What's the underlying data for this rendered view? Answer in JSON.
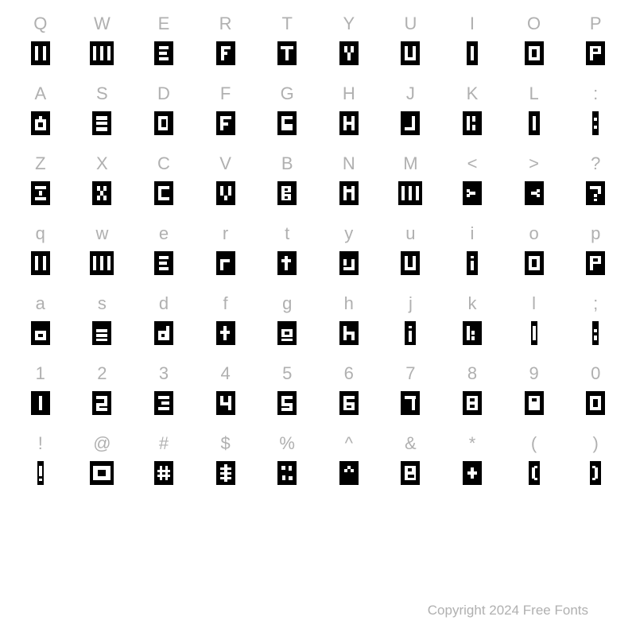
{
  "grid": {
    "columns": 10,
    "rows": 8,
    "label_color": "#b0b0b0",
    "label_fontsize": 22,
    "glyph_bg": "#000000",
    "glyph_cutout": "#ffffff",
    "labels": [
      [
        "Q",
        "W",
        "E",
        "R",
        "T",
        "Y",
        "U",
        "I",
        "O",
        "P"
      ],
      [
        "A",
        "S",
        "D",
        "F",
        "G",
        "H",
        "J",
        "K",
        "L",
        ":"
      ],
      [
        "Z",
        "X",
        "C",
        "V",
        "B",
        "N",
        "M",
        "<",
        ">",
        "?"
      ],
      [
        "q",
        "w",
        "e",
        "r",
        "t",
        "y",
        "u",
        "i",
        "o",
        "p"
      ],
      [
        "a",
        "s",
        "d",
        "f",
        "g",
        "h",
        "j",
        "k",
        "l",
        ";"
      ],
      [
        "1",
        "2",
        "3",
        "4",
        "5",
        "6",
        "7",
        "8",
        "9",
        "0"
      ],
      [
        "!",
        "@",
        "#",
        "$",
        "%",
        "^",
        "&",
        "*",
        "(",
        ")"
      ],
      [
        "",
        "",
        "",
        "",
        "",
        "",
        "",
        "",
        "",
        ""
      ]
    ],
    "glyph_variants": [
      [
        "two-bars",
        "three-bars",
        "box-e",
        "box-r",
        "t-shape",
        "y-shape",
        "u-shape",
        "i-bar",
        "o-ring",
        "p-shape"
      ],
      [
        "a-shape",
        "s-shape",
        "d-shape",
        "f-shape",
        "g-shape",
        "h-shape",
        "j-shape",
        "k-shape",
        "l-bar",
        "colon"
      ],
      [
        "z-shape",
        "x-shape",
        "c-shape",
        "v-shape",
        "b-shape",
        "n-shape",
        "m-shape",
        "lt",
        "gt",
        "qmark"
      ],
      [
        "two-bars",
        "three-bars",
        "box-e",
        "r-low",
        "t-low",
        "y-low",
        "u-shape",
        "i-dot",
        "o-ring",
        "p-shape"
      ],
      [
        "a-low",
        "s-low",
        "d-low",
        "f-low",
        "g-low",
        "h-low",
        "j-low",
        "k-low",
        "l-low",
        "semi"
      ],
      [
        "one",
        "two",
        "three",
        "four",
        "five",
        "six",
        "seven",
        "eight",
        "nine",
        "zero"
      ],
      [
        "bang",
        "at",
        "hash",
        "dollar",
        "pct",
        "caret",
        "amp",
        "star",
        "lparen",
        "rparen"
      ],
      [
        "",
        "",
        "",
        "",
        "",
        "",
        "",
        "",
        "",
        ""
      ]
    ]
  },
  "copyright": "Copyright 2024 Free Fonts"
}
